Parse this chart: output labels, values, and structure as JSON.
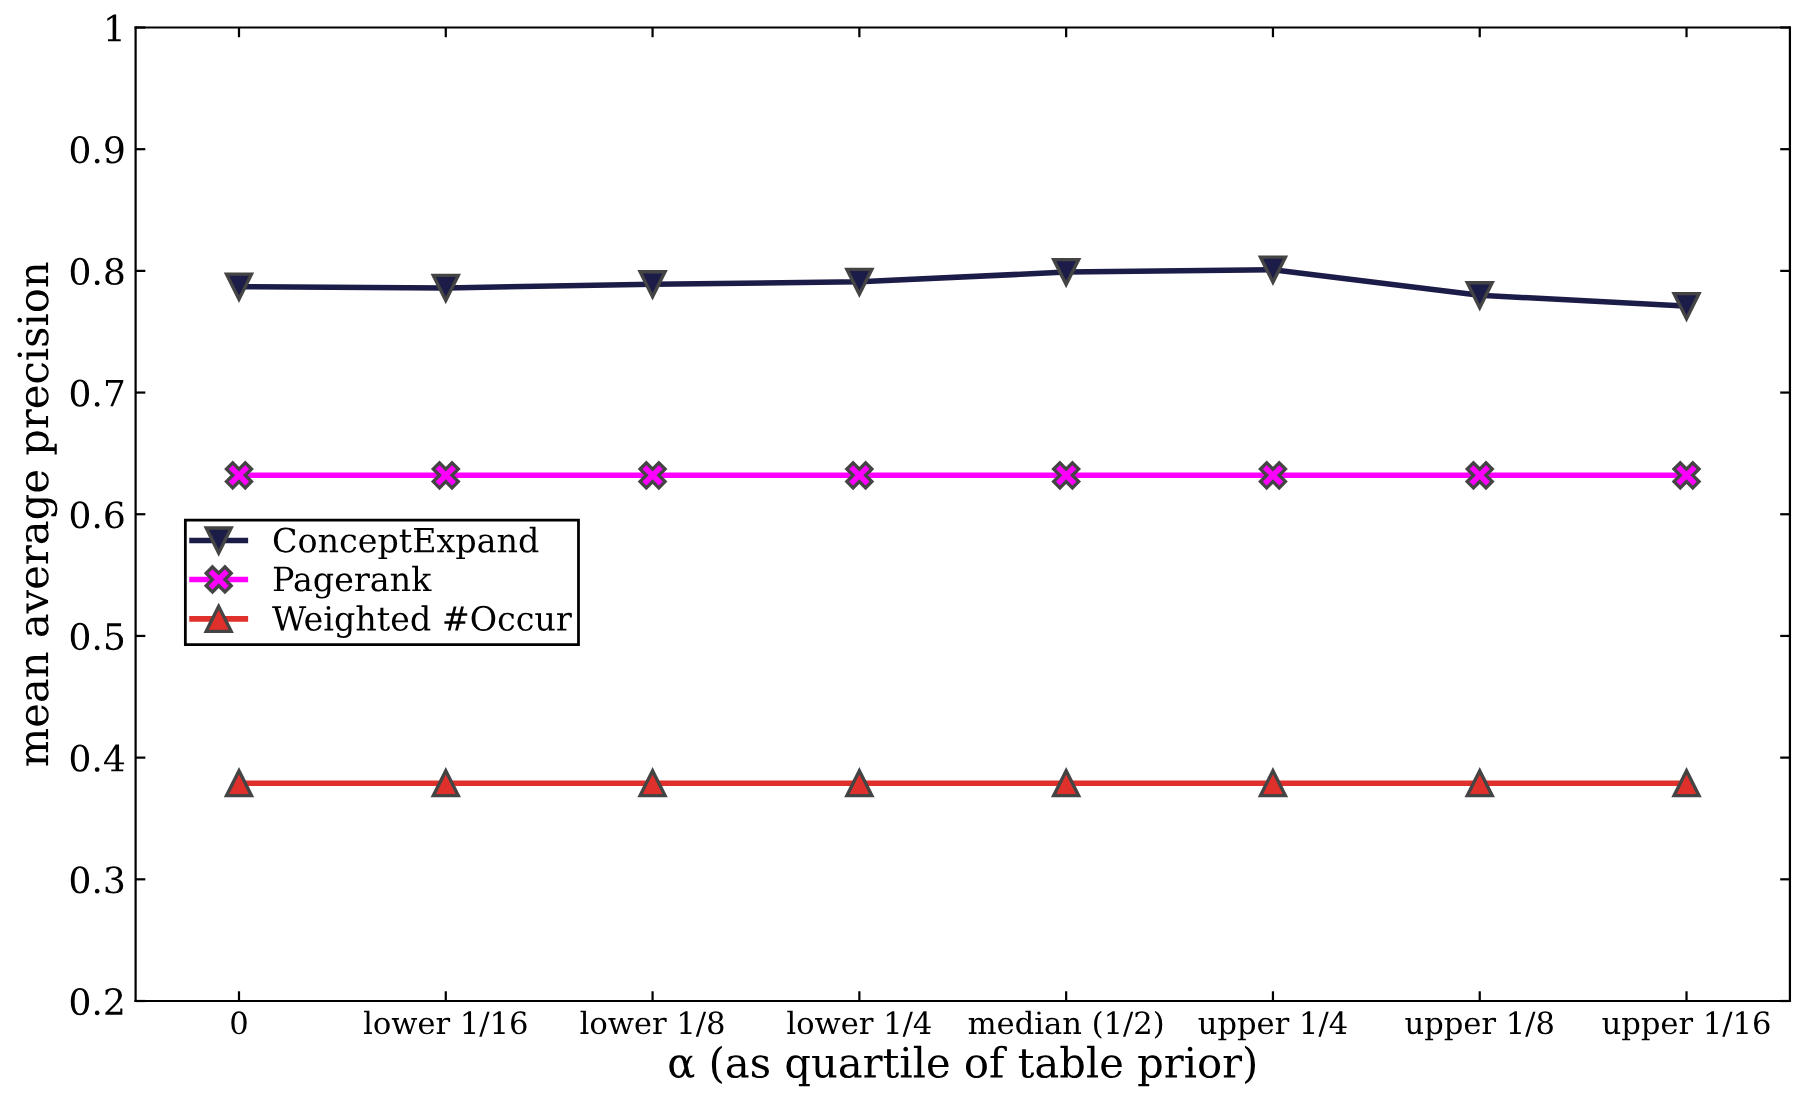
{
  "chart_data": {
    "type": "line",
    "xlabel": "α (as quartile of table prior)",
    "ylabel": "mean average precision",
    "categories": [
      "0",
      "lower 1/16",
      "lower 1/8",
      "lower 1/4",
      "median (1/2)",
      "upper 1/4",
      "upper 1/8",
      "upper 1/16"
    ],
    "series": [
      {
        "name": "ConceptExpand",
        "color": "#1c1c48",
        "marker": "triangle_down",
        "values": [
          0.787,
          0.786,
          0.789,
          0.791,
          0.799,
          0.801,
          0.78,
          0.771
        ]
      },
      {
        "name": "Pagerank",
        "color": "#ff00ff",
        "marker": "cross",
        "values": [
          0.632,
          0.632,
          0.632,
          0.632,
          0.632,
          0.632,
          0.632,
          0.632
        ]
      },
      {
        "name": "Weighted #Occur",
        "color": "#e0302c",
        "marker": "triangle",
        "values": [
          0.379,
          0.379,
          0.379,
          0.379,
          0.379,
          0.379,
          0.379,
          0.379
        ]
      }
    ],
    "ylim": [
      0.2,
      1
    ],
    "yticks": [
      0.2,
      0.3,
      0.4,
      0.5,
      0.6,
      0.7,
      0.8,
      0.9,
      1
    ],
    "grid": false,
    "legend": "center left",
    "line_style": "solid"
  }
}
